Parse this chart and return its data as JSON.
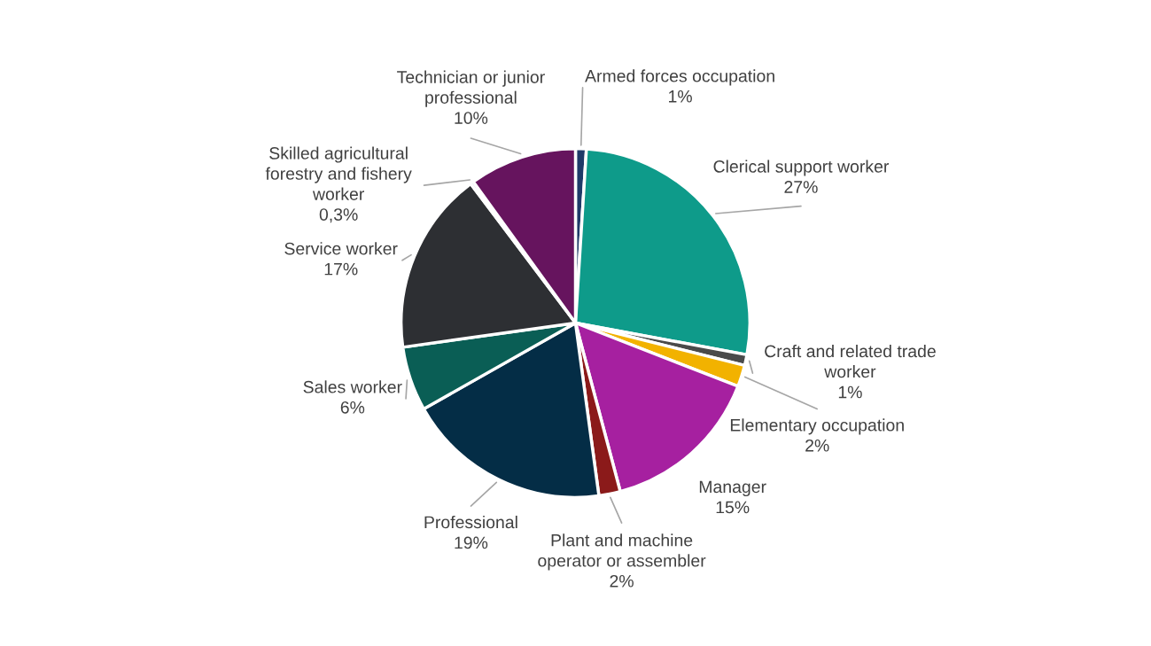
{
  "chart_data": {
    "type": "pie",
    "categories": [
      "Armed forces occupation",
      "Clerical support worker",
      "Craft and related trade worker",
      "Elementary occupation",
      "Manager",
      "Plant and machine operator or assembler",
      "Professional",
      "Sales worker",
      "Service worker",
      "Skilled agricultural forestry and fishery worker",
      "Technician or junior professional"
    ],
    "values": [
      1,
      27,
      1,
      2,
      15,
      2,
      19,
      6,
      17,
      0.3,
      10
    ],
    "value_labels": [
      "1%",
      "27%",
      "1%",
      "2%",
      "15%",
      "2%",
      "19%",
      "6%",
      "17%",
      "0,3%",
      "10%"
    ],
    "colors": [
      "#1f3a68",
      "#0e9b8a",
      "#4a4a4a",
      "#f2b200",
      "#a620a0",
      "#8b1a1a",
      "#042d46",
      "#0a5e55",
      "#2d2f33",
      "#8fa8c8",
      "#66145e"
    ],
    "legend": false
  }
}
